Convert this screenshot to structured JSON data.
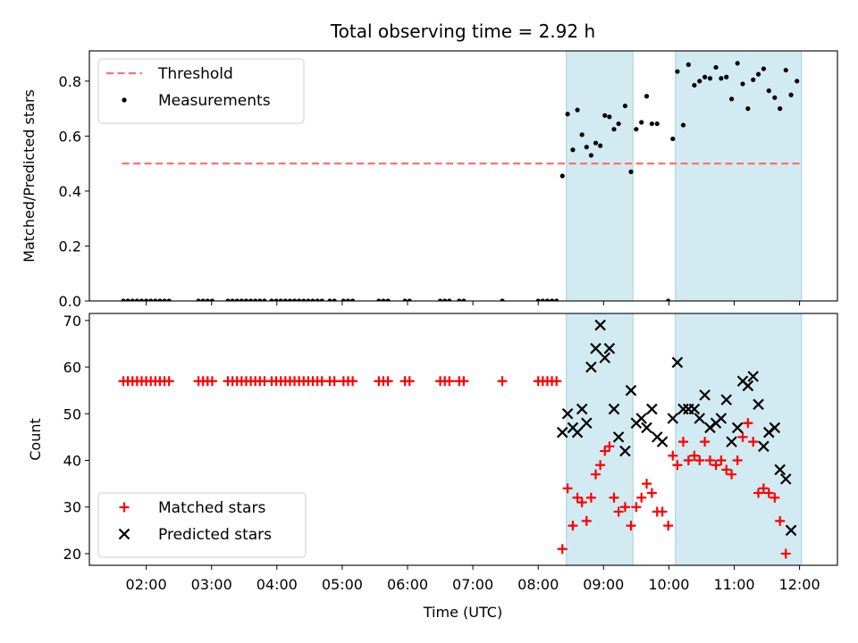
{
  "chart_data": [
    {
      "type": "scatter",
      "title": "Total observing time = 2.92 h",
      "xlabel": "",
      "ylabel": "Matched/Predicted stars",
      "ylim": [
        0,
        0.91
      ],
      "yticks": [
        0.0,
        0.2,
        0.4,
        0.6,
        0.8
      ],
      "ytick_labels": [
        "0.0",
        "0.2",
        "0.4",
        "0.6",
        "0.8"
      ],
      "xlim": [
        1.13,
        12.58
      ],
      "xticks": [
        2,
        3,
        4,
        5,
        6,
        7,
        8,
        9,
        10,
        11,
        12
      ],
      "grid": false,
      "legend": "top-left",
      "shaded_intervals": [
        [
          8.43,
          9.45
        ],
        [
          10.1,
          12.03
        ]
      ],
      "shade_color": "#add8e6",
      "threshold": {
        "name": "Threshold",
        "value": 0.5,
        "x_range": [
          1.63,
          12.0
        ],
        "color": "#ff7070"
      },
      "series": [
        {
          "name": "Measurements",
          "color": "#000000",
          "marker": "dot",
          "points": [
            [
              1.65,
              0
            ],
            [
              1.72,
              0
            ],
            [
              1.79,
              0
            ],
            [
              1.86,
              0
            ],
            [
              1.93,
              0
            ],
            [
              2.0,
              0
            ],
            [
              2.07,
              0
            ],
            [
              2.14,
              0
            ],
            [
              2.21,
              0
            ],
            [
              2.28,
              0
            ],
            [
              2.35,
              0
            ],
            [
              2.8,
              0
            ],
            [
              2.87,
              0
            ],
            [
              2.94,
              0
            ],
            [
              3.01,
              0
            ],
            [
              3.25,
              0
            ],
            [
              3.32,
              0
            ],
            [
              3.39,
              0
            ],
            [
              3.46,
              0
            ],
            [
              3.53,
              0
            ],
            [
              3.6,
              0
            ],
            [
              3.67,
              0
            ],
            [
              3.74,
              0
            ],
            [
              3.81,
              0
            ],
            [
              3.92,
              0
            ],
            [
              3.99,
              0
            ],
            [
              4.06,
              0
            ],
            [
              4.13,
              0
            ],
            [
              4.2,
              0
            ],
            [
              4.27,
              0
            ],
            [
              4.34,
              0
            ],
            [
              4.41,
              0
            ],
            [
              4.48,
              0
            ],
            [
              4.55,
              0
            ],
            [
              4.62,
              0
            ],
            [
              4.69,
              0
            ],
            [
              4.81,
              0
            ],
            [
              4.88,
              0
            ],
            [
              5.02,
              0
            ],
            [
              5.09,
              0
            ],
            [
              5.16,
              0
            ],
            [
              5.56,
              0
            ],
            [
              5.63,
              0
            ],
            [
              5.7,
              0
            ],
            [
              5.96,
              0
            ],
            [
              6.03,
              0
            ],
            [
              6.5,
              0
            ],
            [
              6.57,
              0
            ],
            [
              6.64,
              0
            ],
            [
              6.79,
              0
            ],
            [
              6.86,
              0
            ],
            [
              7.45,
              0
            ],
            [
              8.0,
              0
            ],
            [
              8.07,
              0
            ],
            [
              8.14,
              0
            ],
            [
              8.21,
              0
            ],
            [
              8.28,
              0
            ],
            [
              8.37,
              0.455
            ],
            [
              8.45,
              0.68
            ],
            [
              8.53,
              0.55
            ],
            [
              8.6,
              0.695
            ],
            [
              8.67,
              0.605
            ],
            [
              8.74,
              0.56
            ],
            [
              8.81,
              0.53
            ],
            [
              8.88,
              0.575
            ],
            [
              8.95,
              0.565
            ],
            [
              9.02,
              0.675
            ],
            [
              9.09,
              0.67
            ],
            [
              9.16,
              0.625
            ],
            [
              9.23,
              0.645
            ],
            [
              9.33,
              0.71
            ],
            [
              9.42,
              0.47
            ],
            [
              9.5,
              0.625
            ],
            [
              9.58,
              0.65
            ],
            [
              9.66,
              0.745
            ],
            [
              9.74,
              0.645
            ],
            [
              9.82,
              0.645
            ],
            [
              9.99,
              0.0
            ],
            [
              10.06,
              0.59
            ],
            [
              10.13,
              0.835
            ],
            [
              10.22,
              0.64
            ],
            [
              10.3,
              0.86
            ],
            [
              10.39,
              0.785
            ],
            [
              10.47,
              0.8
            ],
            [
              10.55,
              0.815
            ],
            [
              10.63,
              0.81
            ],
            [
              10.72,
              0.85
            ],
            [
              10.8,
              0.81
            ],
            [
              10.88,
              0.815
            ],
            [
              10.96,
              0.735
            ],
            [
              11.05,
              0.865
            ],
            [
              11.13,
              0.79
            ],
            [
              11.21,
              0.7
            ],
            [
              11.29,
              0.805
            ],
            [
              11.37,
              0.825
            ],
            [
              11.45,
              0.845
            ],
            [
              11.53,
              0.765
            ],
            [
              11.62,
              0.74
            ],
            [
              11.7,
              0.7
            ],
            [
              11.79,
              0.84
            ],
            [
              11.87,
              0.75
            ],
            [
              11.96,
              0.8
            ]
          ]
        }
      ]
    },
    {
      "type": "scatter",
      "title": "",
      "xlabel": "Time (UTC)",
      "ylabel": "Count",
      "ylim": [
        17.5,
        71.5
      ],
      "yticks": [
        20,
        30,
        40,
        50,
        60,
        70
      ],
      "ytick_labels": [
        "20",
        "30",
        "40",
        "50",
        "60",
        "70"
      ],
      "xlim": [
        1.13,
        12.58
      ],
      "xticks": [
        2,
        3,
        4,
        5,
        6,
        7,
        8,
        9,
        10,
        11,
        12
      ],
      "xtick_labels": [
        "02:00",
        "03:00",
        "04:00",
        "05:00",
        "06:00",
        "07:00",
        "08:00",
        "09:00",
        "10:00",
        "11:00",
        "12:00"
      ],
      "grid": false,
      "legend": "bottom-left",
      "shaded_intervals": [
        [
          8.43,
          9.45
        ],
        [
          10.1,
          12.03
        ]
      ],
      "shade_color": "#add8e6",
      "series": [
        {
          "name": "Matched stars",
          "color": "#ff0000",
          "marker": "plus",
          "points": [
            [
              1.65,
              57
            ],
            [
              1.72,
              57
            ],
            [
              1.79,
              57
            ],
            [
              1.86,
              57
            ],
            [
              1.93,
              57
            ],
            [
              2.0,
              57
            ],
            [
              2.07,
              57
            ],
            [
              2.14,
              57
            ],
            [
              2.21,
              57
            ],
            [
              2.28,
              57
            ],
            [
              2.35,
              57
            ],
            [
              2.8,
              57
            ],
            [
              2.87,
              57
            ],
            [
              2.94,
              57
            ],
            [
              3.01,
              57
            ],
            [
              3.25,
              57
            ],
            [
              3.32,
              57
            ],
            [
              3.39,
              57
            ],
            [
              3.46,
              57
            ],
            [
              3.53,
              57
            ],
            [
              3.6,
              57
            ],
            [
              3.67,
              57
            ],
            [
              3.74,
              57
            ],
            [
              3.81,
              57
            ],
            [
              3.92,
              57
            ],
            [
              3.99,
              57
            ],
            [
              4.06,
              57
            ],
            [
              4.13,
              57
            ],
            [
              4.2,
              57
            ],
            [
              4.27,
              57
            ],
            [
              4.34,
              57
            ],
            [
              4.41,
              57
            ],
            [
              4.48,
              57
            ],
            [
              4.55,
              57
            ],
            [
              4.62,
              57
            ],
            [
              4.69,
              57
            ],
            [
              4.81,
              57
            ],
            [
              4.88,
              57
            ],
            [
              5.02,
              57
            ],
            [
              5.09,
              57
            ],
            [
              5.16,
              57
            ],
            [
              5.56,
              57
            ],
            [
              5.63,
              57
            ],
            [
              5.7,
              57
            ],
            [
              5.96,
              57
            ],
            [
              6.03,
              57
            ],
            [
              6.5,
              57
            ],
            [
              6.57,
              57
            ],
            [
              6.64,
              57
            ],
            [
              6.79,
              57
            ],
            [
              6.86,
              57
            ],
            [
              7.45,
              57
            ],
            [
              8.0,
              57
            ],
            [
              8.07,
              57
            ],
            [
              8.14,
              57
            ],
            [
              8.21,
              57
            ],
            [
              8.28,
              57
            ],
            [
              8.37,
              21
            ],
            [
              8.45,
              34
            ],
            [
              8.53,
              26
            ],
            [
              8.6,
              32
            ],
            [
              8.67,
              31
            ],
            [
              8.74,
              27
            ],
            [
              8.81,
              32
            ],
            [
              8.88,
              37
            ],
            [
              8.95,
              39
            ],
            [
              9.02,
              42
            ],
            [
              9.09,
              43
            ],
            [
              9.16,
              32
            ],
            [
              9.23,
              29
            ],
            [
              9.33,
              30
            ],
            [
              9.42,
              26
            ],
            [
              9.5,
              30
            ],
            [
              9.58,
              32
            ],
            [
              9.66,
              35
            ],
            [
              9.74,
              33
            ],
            [
              9.82,
              29
            ],
            [
              9.9,
              29
            ],
            [
              9.99,
              26
            ],
            [
              10.06,
              41
            ],
            [
              10.13,
              39
            ],
            [
              10.22,
              44
            ],
            [
              10.3,
              40
            ],
            [
              10.39,
              41
            ],
            [
              10.47,
              40
            ],
            [
              10.55,
              44
            ],
            [
              10.63,
              40
            ],
            [
              10.72,
              39
            ],
            [
              10.8,
              40
            ],
            [
              10.88,
              38
            ],
            [
              10.96,
              37
            ],
            [
              11.05,
              40
            ],
            [
              11.13,
              45
            ],
            [
              11.21,
              48
            ],
            [
              11.29,
              44
            ],
            [
              11.37,
              33
            ],
            [
              11.45,
              34
            ],
            [
              11.53,
              33
            ],
            [
              11.62,
              32
            ],
            [
              11.7,
              27
            ],
            [
              11.79,
              20
            ]
          ]
        },
        {
          "name": "Predicted stars",
          "color": "#000000",
          "marker": "x",
          "points": [
            [
              8.37,
              46
            ],
            [
              8.45,
              50
            ],
            [
              8.53,
              47
            ],
            [
              8.6,
              46
            ],
            [
              8.67,
              51
            ],
            [
              8.74,
              48
            ],
            [
              8.81,
              60
            ],
            [
              8.88,
              64
            ],
            [
              8.95,
              69
            ],
            [
              9.02,
              62
            ],
            [
              9.09,
              64
            ],
            [
              9.16,
              51
            ],
            [
              9.23,
              45
            ],
            [
              9.33,
              42
            ],
            [
              9.42,
              55
            ],
            [
              9.5,
              48
            ],
            [
              9.58,
              49
            ],
            [
              9.66,
              47
            ],
            [
              9.74,
              51
            ],
            [
              9.82,
              45
            ],
            [
              9.9,
              44
            ],
            [
              10.06,
              49
            ],
            [
              10.13,
              61
            ],
            [
              10.22,
              51
            ],
            [
              10.3,
              51
            ],
            [
              10.39,
              51
            ],
            [
              10.47,
              49
            ],
            [
              10.55,
              54
            ],
            [
              10.63,
              47
            ],
            [
              10.72,
              48
            ],
            [
              10.8,
              49
            ],
            [
              10.88,
              53
            ],
            [
              10.96,
              44
            ],
            [
              11.05,
              47
            ],
            [
              11.13,
              57
            ],
            [
              11.21,
              56
            ],
            [
              11.29,
              58
            ],
            [
              11.37,
              52
            ],
            [
              11.45,
              43
            ],
            [
              11.53,
              46
            ],
            [
              11.62,
              47
            ],
            [
              11.7,
              38
            ],
            [
              11.79,
              36
            ],
            [
              11.87,
              25
            ]
          ]
        }
      ]
    }
  ]
}
